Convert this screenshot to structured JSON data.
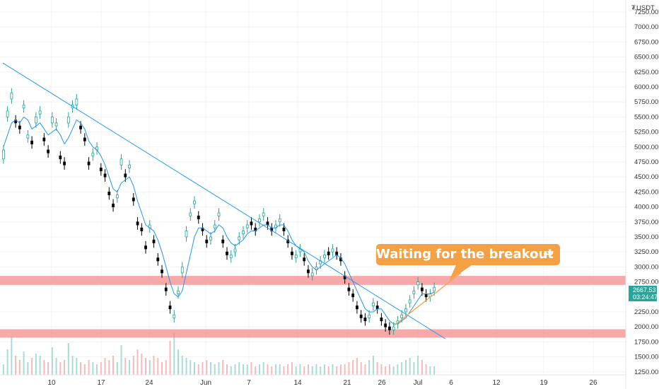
{
  "chart_data": {
    "type": "candlestick",
    "unit_label": "USDT",
    "currency_marker": "₮",
    "y_ticks": [
      "7250.00",
      "7000.00",
      "6750.00",
      "6500.00",
      "6250.00",
      "6000.00",
      "5750.00",
      "5500.00",
      "5250.00",
      "5000.00",
      "4750.00",
      "4500.00",
      "4250.00",
      "4000.00",
      "3750.00",
      "3500.00",
      "3250.00",
      "3000.00",
      "2750.00",
      "2250.00",
      "2000.00",
      "1750.00",
      "1500.00",
      "1250.00"
    ],
    "ylim": [
      1200,
      7450
    ],
    "x_ticks": [
      "10",
      "17",
      "24",
      "Jun",
      "7",
      "14",
      "21",
      "26",
      "Jul",
      "6",
      "12",
      "19",
      "26"
    ],
    "price_close": [
      4950,
      5600,
      5900,
      5400,
      5300,
      5700,
      5200,
      5050,
      5500,
      5600,
      5100,
      4900,
      5500,
      5400,
      4800,
      4700,
      5500,
      5700,
      5800,
      5300,
      5100,
      4700,
      4900,
      5000,
      4600,
      4500,
      4200,
      4000,
      4200,
      4800,
      4500,
      4700,
      4100,
      3700,
      3600,
      3300,
      3700,
      3400,
      3100,
      2900,
      2600,
      2300,
      2200,
      2600,
      3000,
      3600,
      3900,
      4100,
      3800,
      3600,
      3400,
      3500,
      3700,
      3900,
      3400,
      3200,
      3200,
      3300,
      3500,
      3600,
      3700,
      3700,
      3600,
      3800,
      3900,
      3700,
      3600,
      3700,
      3800,
      3600,
      3400,
      3200,
      3200,
      3300,
      3100,
      2900,
      2900,
      3000,
      3100,
      3200,
      3200,
      3300,
      3200,
      3100,
      2800,
      2600,
      2500,
      2300,
      2150,
      2100,
      2200,
      2400,
      2300,
      2100,
      2000,
      1950,
      2000,
      2100,
      2200,
      2300,
      2450,
      2600,
      2750,
      2600,
      2500,
      2550,
      2660
    ],
    "price_open": [
      4800,
      5500,
      5800,
      5450,
      5350,
      5650,
      5150,
      5100,
      5400,
      5550,
      5150,
      4950,
      5400,
      5350,
      4850,
      4750,
      5400,
      5650,
      5700,
      5350,
      5150,
      4750,
      4850,
      4950,
      4650,
      4550,
      4250,
      4050,
      4150,
      4700,
      4550,
      4650,
      4150,
      3750,
      3650,
      3350,
      3650,
      3450,
      3150,
      2950,
      2650,
      2350,
      2150,
      2550,
      2900,
      3500,
      3850,
      4050,
      3850,
      3650,
      3450,
      3450,
      3650,
      3850,
      3450,
      3250,
      3150,
      3250,
      3450,
      3550,
      3650,
      3750,
      3650,
      3750,
      3850,
      3750,
      3650,
      3650,
      3750,
      3650,
      3450,
      3250,
      3150,
      3250,
      3150,
      2950,
      2850,
      2950,
      3050,
      3150,
      3250,
      3250,
      3250,
      3150,
      2850,
      2650,
      2550,
      2350,
      2200,
      2150,
      2150,
      2350,
      2350,
      2150,
      2050,
      2000,
      1950,
      2050,
      2150,
      2250,
      2400,
      2550,
      2700,
      2650,
      2550,
      2500,
      2600
    ],
    "ma_line": [
      5000,
      5200,
      5400,
      5450,
      5400,
      5500,
      5450,
      5300,
      5350,
      5400,
      5300,
      5200,
      5250,
      5300,
      5200,
      5050,
      5150,
      5300,
      5450,
      5400,
      5300,
      5100,
      5000,
      4950,
      4850,
      4700,
      4500,
      4300,
      4250,
      4400,
      4450,
      4500,
      4350,
      4100,
      3900,
      3700,
      3650,
      3600,
      3450,
      3250,
      3000,
      2750,
      2550,
      2500,
      2600,
      2900,
      3200,
      3500,
      3650,
      3650,
      3600,
      3550,
      3600,
      3700,
      3650,
      3500,
      3400,
      3350,
      3400,
      3450,
      3550,
      3600,
      3600,
      3650,
      3700,
      3700,
      3650,
      3650,
      3700,
      3700,
      3600,
      3450,
      3350,
      3300,
      3250,
      3100,
      3000,
      2950,
      3000,
      3050,
      3100,
      3150,
      3200,
      3150,
      3050,
      2900,
      2750,
      2600,
      2450,
      2300,
      2250,
      2250,
      2300,
      2300,
      2200,
      2100,
      2050,
      2050,
      2100,
      2150,
      2250,
      2350,
      2450,
      2550,
      2550,
      2550,
      2580
    ],
    "volume": [
      5,
      12,
      18,
      9,
      7,
      11,
      6,
      8,
      10,
      9,
      7,
      6,
      13,
      8,
      6,
      7,
      15,
      9,
      8,
      6,
      5,
      7,
      6,
      5,
      6,
      8,
      7,
      9,
      6,
      14,
      8,
      7,
      9,
      12,
      10,
      8,
      7,
      9,
      8,
      6,
      7,
      16,
      20,
      12,
      9,
      8,
      7,
      6,
      5,
      6,
      7,
      6,
      5,
      6,
      7,
      5,
      4,
      5,
      6,
      5,
      5,
      6,
      4,
      5,
      6,
      5,
      4,
      5,
      5,
      4,
      5,
      6,
      4,
      5,
      4,
      5,
      4,
      5,
      4,
      5,
      4,
      5,
      4,
      5,
      5,
      6,
      7,
      8,
      6,
      5,
      7,
      9,
      6,
      5,
      4,
      5,
      4,
      5,
      6,
      7,
      8,
      6,
      9,
      7,
      5,
      4,
      4
    ],
    "resistance_zone": [
      2700,
      2850
    ],
    "support_zone": [
      1820,
      1960
    ],
    "downtrend_line": [
      6400,
      1800
    ],
    "uptrend_line": [
      2020,
      2900
    ],
    "current_price": "2667.53",
    "countdown": "03:24:47",
    "annotation": "Waiting for the breakout",
    "annotation_emoji": "↩",
    "colors": {
      "up": "#26a69a",
      "down": "#000000",
      "ma": "#2196f3",
      "trendline": "#2196f3",
      "zone": "#f48c8c",
      "callout": "#f4a044",
      "uptrend": "#f4a044",
      "badge": "#26a69a"
    }
  }
}
